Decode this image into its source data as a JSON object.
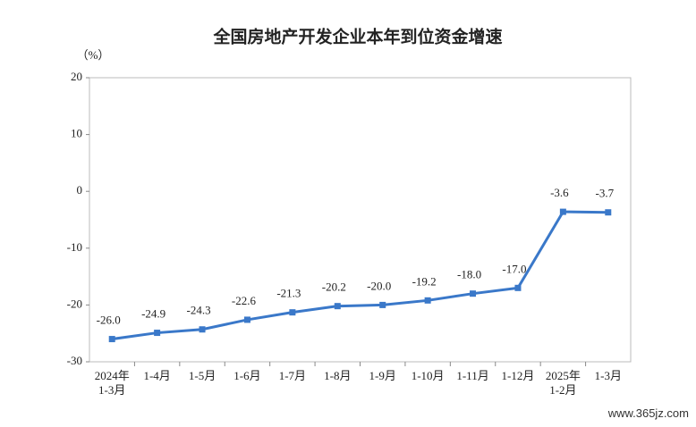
{
  "chart_data": {
    "type": "line",
    "title": "全国房地产开发企业本年到位资金增速",
    "y_label": "（%）",
    "categories": [
      "2024年\n1-3月",
      "1-4月",
      "1-5月",
      "1-6月",
      "1-7月",
      "1-8月",
      "1-9月",
      "1-10月",
      "1-11月",
      "1-12月",
      "2025年\n1-2月",
      "1-3月"
    ],
    "series": [
      {
        "name": "到位资金增速",
        "color": "#3a78c9",
        "values": [
          -26.0,
          -24.9,
          -24.3,
          -22.6,
          -21.3,
          -20.2,
          -20.0,
          -19.2,
          -18.0,
          -17.0,
          -3.6,
          -3.7
        ],
        "value_labels": [
          "-26.0",
          "-24.9",
          "-24.3",
          "-22.6",
          "-21.3",
          "-20.2",
          "-20.0",
          "-19.2",
          "-18.0",
          "-17.0",
          "-3.6",
          "-3.7"
        ]
      }
    ],
    "ylim": [
      -30,
      20
    ],
    "yticks": [
      20,
      10,
      0,
      -10,
      -20,
      -30
    ],
    "grid": false,
    "watermark": "www.365jz.com"
  }
}
